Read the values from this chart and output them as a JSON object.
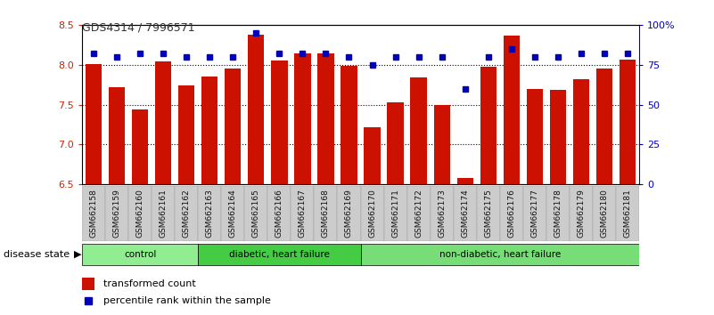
{
  "title": "GDS4314 / 7996571",
  "samples": [
    "GSM662158",
    "GSM662159",
    "GSM662160",
    "GSM662161",
    "GSM662162",
    "GSM662163",
    "GSM662164",
    "GSM662165",
    "GSM662166",
    "GSM662167",
    "GSM662168",
    "GSM662169",
    "GSM662170",
    "GSM662171",
    "GSM662172",
    "GSM662173",
    "GSM662174",
    "GSM662175",
    "GSM662176",
    "GSM662177",
    "GSM662178",
    "GSM662179",
    "GSM662180",
    "GSM662181"
  ],
  "bar_values": [
    8.01,
    7.72,
    7.44,
    8.04,
    7.74,
    7.86,
    7.95,
    8.38,
    8.06,
    8.15,
    8.15,
    7.99,
    7.22,
    7.53,
    7.84,
    7.5,
    6.58,
    7.98,
    8.37,
    7.7,
    7.69,
    7.82,
    7.95,
    8.07
  ],
  "percentile_values": [
    82,
    80,
    82,
    82,
    80,
    80,
    80,
    95,
    82,
    82,
    82,
    80,
    75,
    80,
    80,
    80,
    60,
    80,
    85,
    80,
    80,
    82,
    82,
    82
  ],
  "groups": [
    {
      "label": "control",
      "start": 0,
      "end": 5,
      "color": "#90EE90"
    },
    {
      "label": "diabetic, heart failure",
      "start": 5,
      "end": 12,
      "color": "#44CC44"
    },
    {
      "label": "non-diabetic, heart failure",
      "start": 12,
      "end": 24,
      "color": "#77DD77"
    }
  ],
  "ylim": [
    6.5,
    8.5
  ],
  "yticks": [
    6.5,
    7.0,
    7.5,
    8.0,
    8.5
  ],
  "right_yticks": [
    0,
    25,
    50,
    75,
    100
  ],
  "right_ylabels": [
    "0",
    "25",
    "50",
    "75",
    "100%"
  ],
  "bar_color": "#CC1100",
  "dot_color": "#0000BB",
  "bg_color": "#FFFFFF",
  "tick_label_color_left": "#CC2200",
  "tick_label_color_right": "#0000BB",
  "grid_color": "#000000",
  "disease_state_label": "disease state",
  "legend_bar_label": "transformed count",
  "legend_dot_label": "percentile rank within the sample",
  "sample_bg_color": "#CCCCCC",
  "sample_border_color": "#999999"
}
